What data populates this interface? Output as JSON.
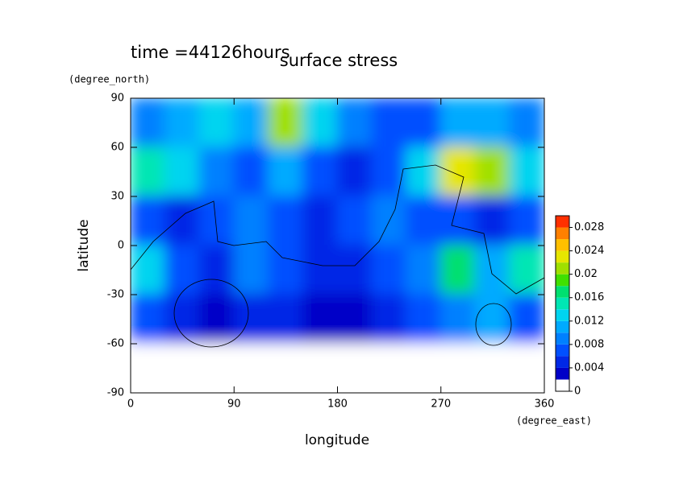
{
  "chart_data": {
    "type": "contour",
    "title": "surface stress",
    "subtitle": "time =44126hours",
    "x_label": "longitude",
    "x_units": "(degree_east)",
    "y_label": "latitude",
    "y_units": "(degree_north)",
    "xlim": [
      0,
      360
    ],
    "ylim": [
      -90,
      90
    ],
    "xticks": [
      0,
      90,
      180,
      270,
      360
    ],
    "yticks": [
      90,
      60,
      30,
      0,
      -30,
      -60,
      -90
    ],
    "clim": [
      0,
      0.03
    ],
    "cticks": [
      0,
      0.004,
      0.008,
      0.012,
      0.016,
      0.02,
      0.024,
      0.028
    ],
    "colors": [
      "#ffffff",
      "#0000c8",
      "#0028e6",
      "#0050ff",
      "#0080ff",
      "#00aaff",
      "#00d4f0",
      "#00e6b4",
      "#00e070",
      "#40e000",
      "#a0e000",
      "#e6e600",
      "#ffc000",
      "#ff8000",
      "#ff3000"
    ],
    "x": [
      15,
      45,
      75,
      105,
      135,
      165,
      195,
      225,
      255,
      285,
      315,
      345
    ],
    "y": [
      75,
      45,
      15,
      -15,
      -45,
      -75
    ],
    "values": [
      [
        0.008,
        0.01,
        0.012,
        0.01,
        0.02,
        0.012,
        0.008,
        0.006,
        0.006,
        0.01,
        0.01,
        0.008
      ],
      [
        0.014,
        0.012,
        0.008,
        0.006,
        0.01,
        0.006,
        0.004,
        0.006,
        0.012,
        0.022,
        0.02,
        0.012
      ],
      [
        0.006,
        0.004,
        0.006,
        0.008,
        0.006,
        0.004,
        0.006,
        0.008,
        0.006,
        0.006,
        0.004,
        0.006
      ],
      [
        0.012,
        0.006,
        0.004,
        0.008,
        0.006,
        0.004,
        0.004,
        0.006,
        0.008,
        0.016,
        0.01,
        0.014
      ],
      [
        0.006,
        0.004,
        0.002,
        0.004,
        0.004,
        0.002,
        0.002,
        0.004,
        0.006,
        0.008,
        0.01,
        0.006
      ],
      [
        0,
        0,
        0,
        0,
        0,
        0,
        0,
        0,
        0,
        0,
        0,
        0
      ]
    ]
  }
}
